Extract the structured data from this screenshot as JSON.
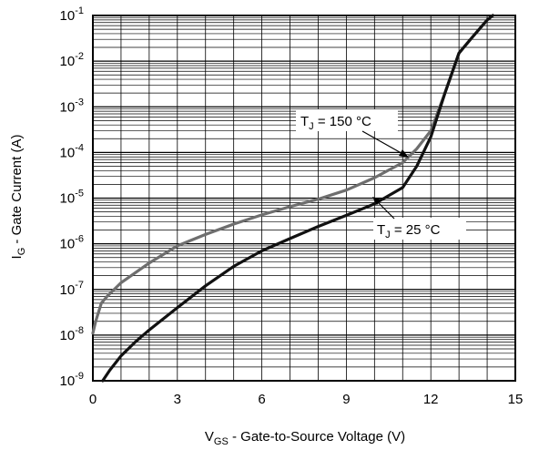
{
  "chart_data": {
    "type": "line",
    "title": "",
    "xlabel_main": "V",
    "xlabel_sub": "GS",
    "xlabel_rest": " - Gate-to-Source Voltage (V)",
    "ylabel_main": "I",
    "ylabel_sub": "G",
    "ylabel_rest": " - Gate Current (A)",
    "xlim": [
      0,
      15
    ],
    "ylim": [
      1e-09,
      0.1
    ],
    "y_scale": "log",
    "grid": true,
    "x_ticks": [
      0,
      3,
      6,
      9,
      12,
      15
    ],
    "y_ticks": [
      {
        "value": 1e-09,
        "base": "10",
        "exp": "-9"
      },
      {
        "value": 1e-08,
        "base": "10",
        "exp": "-8"
      },
      {
        "value": 1e-07,
        "base": "10",
        "exp": "-7"
      },
      {
        "value": 1e-06,
        "base": "10",
        "exp": "-6"
      },
      {
        "value": 1e-05,
        "base": "10",
        "exp": "-5"
      },
      {
        "value": 0.0001,
        "base": "10",
        "exp": "-4"
      },
      {
        "value": 0.001,
        "base": "10",
        "exp": "-3"
      },
      {
        "value": 0.01,
        "base": "10",
        "exp": "-2"
      },
      {
        "value": 0.1,
        "base": "10",
        "exp": "-1"
      }
    ],
    "series": [
      {
        "label_main": "T",
        "label_sub": "J",
        "label_rest": " = 150 °C",
        "color": "#6e6e6e",
        "x": [
          0.0,
          0.1,
          0.3,
          0.5,
          1.0,
          1.5,
          2.0,
          3.0,
          4.0,
          5.0,
          6.0,
          7.0,
          8.0,
          9.0,
          10.0,
          11.0,
          11.5,
          12.0,
          12.5,
          13.0,
          13.5,
          14.0,
          14.2
        ],
        "y": [
          1.1e-08,
          2e-08,
          5e-08,
          7e-08,
          1.4e-07,
          2.3e-07,
          3.8e-07,
          9e-07,
          1.6e-06,
          2.7e-06,
          4.3e-06,
          6.5e-06,
          9.5e-06,
          1.5e-05,
          2.8e-05,
          6e-05,
          0.00012,
          0.0003,
          0.002,
          0.015,
          0.035,
          0.08,
          0.1
        ]
      },
      {
        "label_main": "T",
        "label_sub": "J",
        "label_rest": " = 25 °C",
        "color": "#111111",
        "x": [
          0.35,
          0.6,
          1.0,
          1.5,
          2.0,
          3.0,
          4.0,
          5.0,
          6.0,
          7.0,
          8.0,
          9.0,
          10.0,
          11.0,
          11.5,
          12.0,
          12.5,
          13.0,
          13.5,
          14.0,
          14.2
        ],
        "y": [
          1e-09,
          1.7e-09,
          3.5e-09,
          7e-09,
          1.3e-08,
          4e-08,
          1.2e-07,
          3.2e-07,
          7e-07,
          1.3e-06,
          2.4e-06,
          4.2e-06,
          7.5e-06,
          1.7e-05,
          5e-05,
          0.00022,
          0.002,
          0.015,
          0.035,
          0.08,
          0.1
        ]
      }
    ]
  }
}
